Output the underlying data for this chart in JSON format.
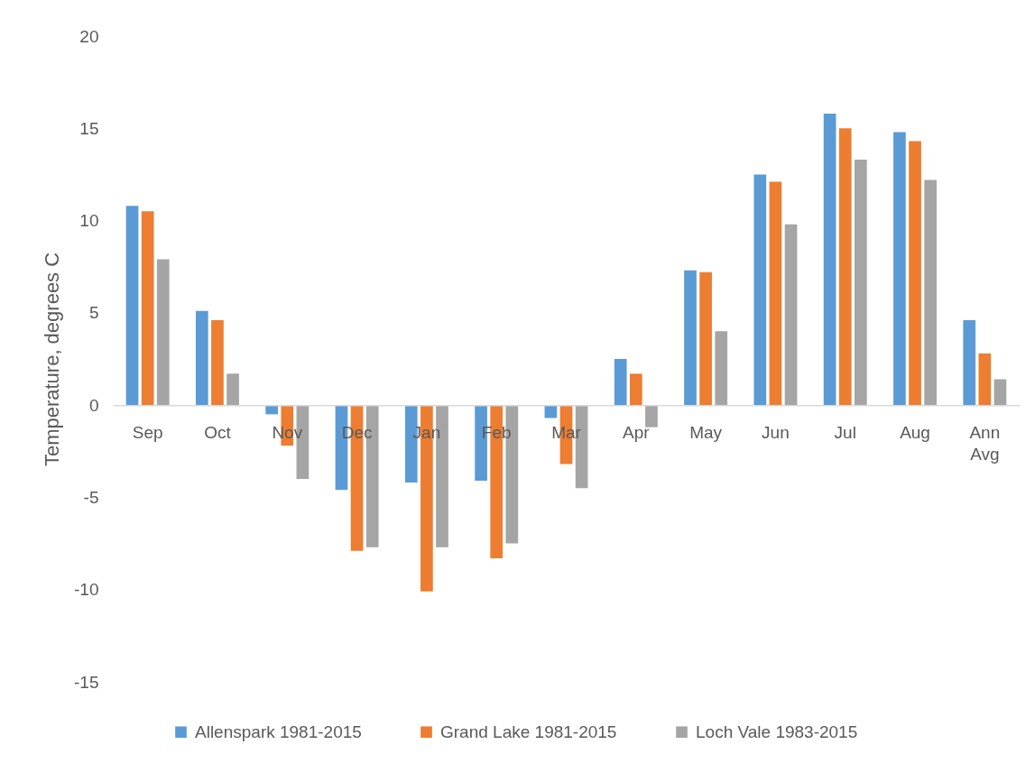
{
  "chart_data": {
    "type": "bar",
    "ylabel": "Temperature, degrees C",
    "categories": [
      "Sep",
      "Oct",
      "Nov",
      "Dec",
      "Jan",
      "Feb",
      "Mar",
      "Apr",
      "May",
      "Jun",
      "Jul",
      "Aug",
      "Ann Avg"
    ],
    "series": [
      {
        "name": "Allenspark 1981-2015",
        "color": "#5b9bd5",
        "values": [
          10.8,
          5.1,
          -0.5,
          -4.6,
          -4.2,
          -4.1,
          -0.7,
          2.5,
          7.3,
          12.5,
          15.8,
          14.8,
          4.6
        ]
      },
      {
        "name": "Grand Lake 1981-2015",
        "color": "#ed7d31",
        "values": [
          10.5,
          4.6,
          -2.2,
          -7.9,
          -10.1,
          -8.3,
          -3.2,
          1.7,
          7.2,
          12.1,
          15.0,
          14.3,
          2.8
        ]
      },
      {
        "name": "Loch Vale 1983-2015",
        "color": "#a5a5a5",
        "values": [
          7.9,
          1.7,
          -4.0,
          -7.7,
          -7.7,
          -7.5,
          -4.5,
          -1.2,
          4.0,
          9.8,
          13.3,
          12.2,
          1.4
        ]
      }
    ],
    "ylim": [
      -15,
      20
    ],
    "yticks": [
      -15,
      -10,
      -5,
      0,
      5,
      10,
      15,
      20
    ],
    "grid": false,
    "legend": "bottom"
  }
}
